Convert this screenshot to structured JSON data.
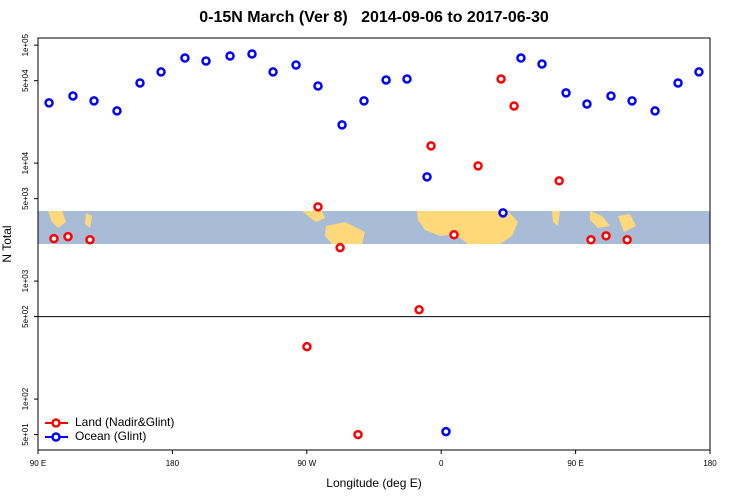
{
  "chart_data": {
    "type": "scatter",
    "title": "0-15N March (Ver 8)   2014-09-06 to 2017-06-30",
    "x_label": "Longitude (deg E)",
    "y_label": "N Total",
    "log_y": true,
    "legend": "bottom-left",
    "xlim": [
      90,
      540
    ],
    "xticks": [
      {
        "value": 90,
        "label": "90 E"
      },
      {
        "value": 180,
        "label": "180"
      },
      {
        "value": 270,
        "label": "90 W"
      },
      {
        "value": 360,
        "label": "0"
      },
      {
        "value": 450,
        "label": "90 E"
      },
      {
        "value": 540,
        "label": "180"
      }
    ],
    "ylim": [
      37,
      115000
    ],
    "yticks": [
      {
        "value": 50,
        "label": "5e+01"
      },
      {
        "value": 100,
        "label": "1e+02"
      },
      {
        "value": 500,
        "label": "5e+02"
      },
      {
        "value": 1000,
        "label": "1e+03"
      },
      {
        "value": 5000,
        "label": "5e+03"
      },
      {
        "value": 10000,
        "label": "1e+04"
      },
      {
        "value": 50000,
        "label": "5e+04"
      },
      {
        "value": 100000,
        "label": "1e+05"
      }
    ],
    "hline": 500,
    "series": [
      {
        "name": "Land (Nadir&Glint)",
        "color": "#ff0000",
        "x": [
          100.7,
          110.1,
          124.8,
          277.5,
          292.3,
          270.1,
          304.3,
          345.2,
          353.2,
          368.6,
          384.7,
          400.1,
          408.8,
          439.0,
          460.3,
          470.4,
          484.5
        ],
        "values": [
          2290,
          2380,
          2240,
          4260,
          1920,
          278,
          50,
          572,
          14000,
          2470,
          9480,
          51700,
          30500,
          7080,
          2240,
          2420,
          2240
        ]
      },
      {
        "name": "Ocean (Glint)",
        "color": "#0000ff",
        "x": [
          97.4,
          113.4,
          127.5,
          142.9,
          158.3,
          172.4,
          188.4,
          202.5,
          218.6,
          233.3,
          247.4,
          262.8,
          277.5,
          293.6,
          308.3,
          323.1,
          337.1,
          350.5,
          401.4,
          413.4,
          427.5,
          443.6,
          457.6,
          473.7,
          487.8,
          503.2,
          518.6,
          532.6,
          363.2
        ],
        "values": [
          32400,
          37100,
          33700,
          27700,
          47800,
          59300,
          77800,
          73400,
          80900,
          84200,
          59300,
          67900,
          45100,
          21100,
          33700,
          50700,
          51700,
          7650,
          3790,
          77800,
          69200,
          39400,
          31700,
          37100,
          33700,
          27700,
          47800,
          59300,
          53
        ]
      }
    ]
  }
}
